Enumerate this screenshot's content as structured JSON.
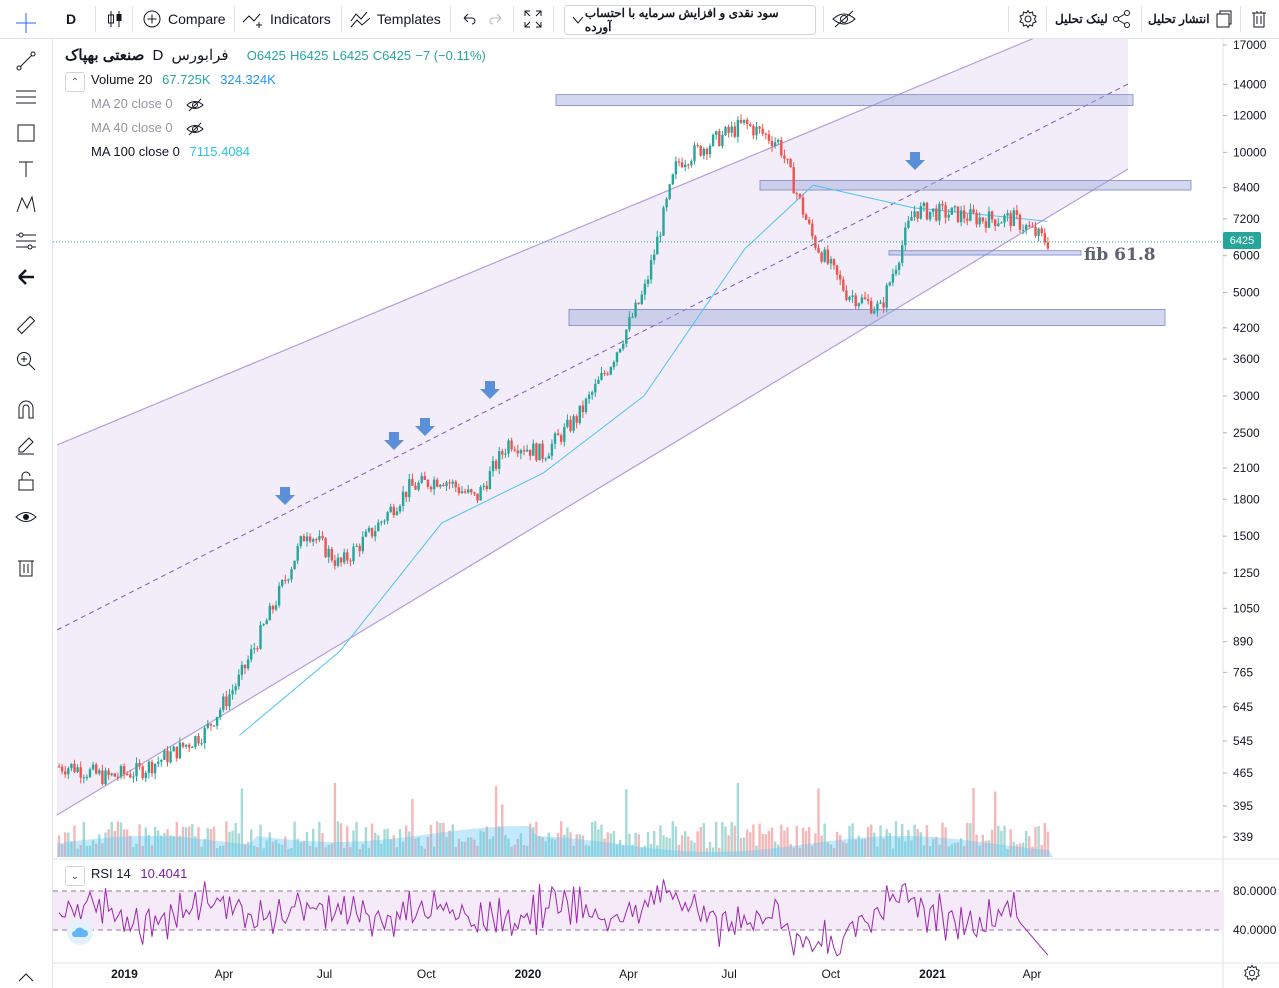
{
  "toolbar": {
    "interval": "D",
    "compare_label": "Compare",
    "indicators_label": "Indicators",
    "templates_label": "Templates",
    "analysis_title": "سود نقدی و افزایش سرمایه با احتساب آورده",
    "link_label": "لینک تحلیل",
    "publish_label": "انتشار تحلیل"
  },
  "symbol": {
    "name": "صنعتی بهپاک",
    "interval": "D",
    "exchange": "فرابورس",
    "ohlc": {
      "o": "O6425",
      "h": "H6425",
      "l": "L6425",
      "c": "C6425",
      "change": "−7 (−0.11%)"
    }
  },
  "indicators": {
    "volume": {
      "label": "Volume 20",
      "v1": "67.725K",
      "v2": "324.324K"
    },
    "ma20": {
      "label": "MA 20 close 0"
    },
    "ma40": {
      "label": "MA 40 close 0"
    },
    "ma100": {
      "label": "MA 100 close 0",
      "value": "7115.4084"
    },
    "rsi": {
      "label": "RSI 14",
      "value": "10.4041"
    }
  },
  "annotations": {
    "fib": "fib 61.8"
  },
  "last_price": "6425",
  "colors": {
    "up": "#26a69a",
    "down": "#ef5350",
    "channel": "#b39ddb",
    "zone": "#9fa8da",
    "ma": "#4fc3f7",
    "rsi": "#9c27b0",
    "arrow": "#5b8fd8"
  },
  "chart_data": {
    "type": "candlestick",
    "title": "صنعتی بهپاک",
    "x_axis_labels": [
      "2019",
      "Apr",
      "Jul",
      "Oct",
      "2020",
      "Apr",
      "Jul",
      "Oct",
      "2021",
      "Apr"
    ],
    "price_axis_labels": [
      "17000",
      "14000",
      "12000",
      "10000",
      "8400",
      "7200",
      "6000",
      "5000",
      "4200",
      "3600",
      "3000",
      "2500",
      "2100",
      "1800",
      "1500",
      "1250",
      "1050",
      "890",
      "765",
      "645",
      "545",
      "465",
      "395",
      "339"
    ],
    "rsi_axis_labels": [
      "80.0000",
      "40.0000"
    ],
    "scale": "log",
    "close_series": [
      {
        "date": "2018-11",
        "value": 480
      },
      {
        "date": "2018-12",
        "value": 455
      },
      {
        "date": "2019-01",
        "value": 470
      },
      {
        "date": "2019-02",
        "value": 515
      },
      {
        "date": "2019-03",
        "value": 570
      },
      {
        "date": "2019-04",
        "value": 740
      },
      {
        "date": "2019-05",
        "value": 1050
      },
      {
        "date": "2019-06",
        "value": 1550
      },
      {
        "date": "2019-07",
        "value": 1300
      },
      {
        "date": "2019-08",
        "value": 1550
      },
      {
        "date": "2019-09",
        "value": 1900
      },
      {
        "date": "2019-10",
        "value": 2000
      },
      {
        "date": "2019-11",
        "value": 1800
      },
      {
        "date": "2019-12",
        "value": 2400
      },
      {
        "date": "2020-01",
        "value": 2250
      },
      {
        "date": "2020-02",
        "value": 2700
      },
      {
        "date": "2020-03",
        "value": 3500
      },
      {
        "date": "2020-04",
        "value": 5000
      },
      {
        "date": "2020-05",
        "value": 9500
      },
      {
        "date": "2020-06",
        "value": 10500
      },
      {
        "date": "2020-07",
        "value": 11500
      },
      {
        "date": "2020-08",
        "value": 10500
      },
      {
        "date": "2020-09",
        "value": 6500
      },
      {
        "date": "2020-10",
        "value": 5000
      },
      {
        "date": "2020-11",
        "value": 4600
      },
      {
        "date": "2020-12",
        "value": 7500
      },
      {
        "date": "2021-01",
        "value": 7400
      },
      {
        "date": "2021-02",
        "value": 7200
      },
      {
        "date": "2021-03",
        "value": 7200
      },
      {
        "date": "2021-04",
        "value": 6425
      }
    ],
    "ma100": [
      {
        "date": "2019-04",
        "value": 560
      },
      {
        "date": "2019-07",
        "value": 850
      },
      {
        "date": "2019-10",
        "value": 1600
      },
      {
        "date": "2020-01",
        "value": 2050
      },
      {
        "date": "2020-04",
        "value": 3000
      },
      {
        "date": "2020-07",
        "value": 6200
      },
      {
        "date": "2020-09",
        "value": 8500
      },
      {
        "date": "2020-12",
        "value": 7600
      },
      {
        "date": "2021-04",
        "value": 7115
      }
    ],
    "zones": [
      {
        "from": 12600,
        "to": 13300
      },
      {
        "from": 8300,
        "to": 8700
      },
      {
        "from": 6020,
        "to": 6150
      },
      {
        "from": 4250,
        "to": 4600
      }
    ],
    "rsi": {
      "levels": [
        80,
        40
      ],
      "last": 10.4
    }
  }
}
